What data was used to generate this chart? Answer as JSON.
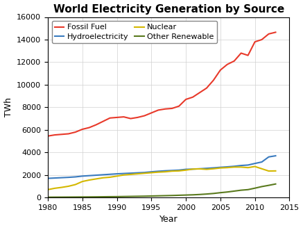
{
  "title": "World Electricity Generation by Source",
  "xlabel": "Year",
  "ylabel": "TWh",
  "xlim": [
    1980,
    2015
  ],
  "ylim": [
    0,
    16000
  ],
  "yticks": [
    0,
    2000,
    4000,
    6000,
    8000,
    10000,
    12000,
    14000,
    16000
  ],
  "xticks": [
    1980,
    1985,
    1990,
    1995,
    2000,
    2005,
    2010,
    2015
  ],
  "years": [
    1980,
    1981,
    1982,
    1983,
    1984,
    1985,
    1986,
    1987,
    1988,
    1989,
    1990,
    1991,
    1992,
    1993,
    1994,
    1995,
    1996,
    1997,
    1998,
    1999,
    2000,
    2001,
    2002,
    2003,
    2004,
    2005,
    2006,
    2007,
    2008,
    2009,
    2010,
    2011,
    2012,
    2013
  ],
  "fossil_fuel": [
    5450,
    5550,
    5600,
    5650,
    5800,
    6050,
    6200,
    6450,
    6750,
    7050,
    7100,
    7150,
    7000,
    7100,
    7250,
    7500,
    7750,
    7850,
    7900,
    8100,
    8700,
    8900,
    9300,
    9700,
    10400,
    11300,
    11800,
    12100,
    12800,
    12600,
    13800,
    14000,
    14500,
    14650
  ],
  "hydroelectricity": [
    1700,
    1730,
    1760,
    1790,
    1830,
    1900,
    1940,
    1980,
    2020,
    2060,
    2100,
    2130,
    2160,
    2190,
    2220,
    2280,
    2330,
    2370,
    2400,
    2430,
    2500,
    2520,
    2550,
    2590,
    2630,
    2680,
    2720,
    2770,
    2840,
    2880,
    3020,
    3150,
    3600,
    3700
  ],
  "nuclear": [
    700,
    820,
    900,
    1000,
    1150,
    1420,
    1550,
    1650,
    1750,
    1800,
    1900,
    2000,
    2050,
    2100,
    2150,
    2200,
    2250,
    2280,
    2340,
    2360,
    2430,
    2520,
    2540,
    2500,
    2550,
    2620,
    2650,
    2700,
    2700,
    2650,
    2750,
    2550,
    2350,
    2360
  ],
  "other_renewable": [
    30,
    35,
    38,
    42,
    46,
    50,
    55,
    60,
    68,
    75,
    80,
    90,
    100,
    110,
    120,
    135,
    150,
    165,
    180,
    200,
    220,
    240,
    270,
    310,
    360,
    430,
    490,
    570,
    650,
    700,
    830,
    970,
    1080,
    1200
  ],
  "fossil_color": "#e8392a",
  "hydro_color": "#3a7bbf",
  "nuclear_color": "#d4b800",
  "renewable_color": "#5a7a1e",
  "background_color": "#ffffff",
  "grid_color": "#d0d0d0",
  "title_fontsize": 11,
  "label_fontsize": 9,
  "tick_fontsize": 8,
  "legend_fontsize": 8,
  "linewidth": 1.5,
  "legend_labels_row1": [
    "Fossil Fuel",
    "Hydroelectricity"
  ],
  "legend_labels_row2": [
    "Nuclear",
    "Other Renewable"
  ]
}
